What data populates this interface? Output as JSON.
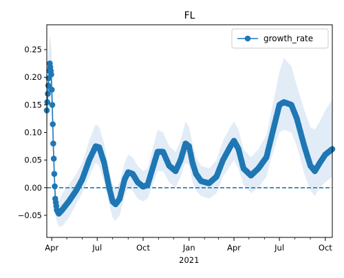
{
  "chart_data": {
    "type": "line",
    "title": "FL",
    "xlabel": "",
    "ylabel": "",
    "x_year_label": "2021",
    "xlim": [
      "2020-03-22",
      "2021-10-15"
    ],
    "ylim": [
      -0.09,
      0.295
    ],
    "yticks": [
      -0.05,
      0.0,
      0.05,
      0.1,
      0.15,
      0.2,
      0.25
    ],
    "ytick_labels": [
      "−0.05",
      "0.00",
      "0.05",
      "0.10",
      "0.15",
      "0.20",
      "0.25"
    ],
    "xticks": [
      {
        "date": "2020-04-01",
        "label": "Apr"
      },
      {
        "date": "2020-07-01",
        "label": "Jul"
      },
      {
        "date": "2020-10-01",
        "label": "Oct"
      },
      {
        "date": "2021-01-01",
        "label": "Jan"
      },
      {
        "date": "2021-04-01",
        "label": "Apr"
      },
      {
        "date": "2021-07-01",
        "label": "Jul"
      },
      {
        "date": "2021-10-01",
        "label": "Oct"
      }
    ],
    "minor_xticks": [
      "2020-05-01",
      "2020-06-01",
      "2020-08-01",
      "2020-09-01",
      "2020-11-01",
      "2020-12-01",
      "2021-02-01",
      "2021-03-01",
      "2021-05-01",
      "2021-06-01",
      "2021-08-01",
      "2021-09-01"
    ],
    "reference_line": {
      "y": 0.0,
      "style": "dashed"
    },
    "legend": {
      "placement": "top-right",
      "entries": [
        "growth_rate"
      ]
    },
    "grid": false,
    "series": [
      {
        "name": "growth_rate",
        "color": "#1f77b4",
        "band_color": "#cfe0f1",
        "points": [
          {
            "x": "2020-03-22",
            "y": 0.14,
            "lo": 0.09,
            "hi": 0.19
          },
          {
            "x": "2020-03-25",
            "y": 0.185,
            "lo": 0.13,
            "hi": 0.245
          },
          {
            "x": "2020-03-28",
            "y": 0.225,
            "lo": 0.165,
            "hi": 0.275
          },
          {
            "x": "2020-03-31",
            "y": 0.205,
            "lo": 0.15,
            "hi": 0.26
          },
          {
            "x": "2020-04-02",
            "y": 0.15,
            "lo": 0.1,
            "hi": 0.2
          },
          {
            "x": "2020-04-04",
            "y": 0.08,
            "lo": 0.04,
            "hi": 0.12
          },
          {
            "x": "2020-04-06",
            "y": 0.025,
            "lo": 0.0,
            "hi": 0.05
          },
          {
            "x": "2020-04-08",
            "y": -0.02,
            "lo": -0.045,
            "hi": 0.01
          },
          {
            "x": "2020-04-11",
            "y": -0.04,
            "lo": -0.06,
            "hi": -0.015
          },
          {
            "x": "2020-04-15",
            "y": -0.047,
            "lo": -0.07,
            "hi": -0.025
          },
          {
            "x": "2020-04-22",
            "y": -0.04,
            "lo": -0.07,
            "hi": -0.01
          },
          {
            "x": "2020-05-05",
            "y": -0.025,
            "lo": -0.055,
            "hi": 0.005
          },
          {
            "x": "2020-05-20",
            "y": -0.005,
            "lo": -0.03,
            "hi": 0.025
          },
          {
            "x": "2020-06-01",
            "y": 0.015,
            "lo": -0.01,
            "hi": 0.045
          },
          {
            "x": "2020-06-15",
            "y": 0.05,
            "lo": 0.02,
            "hi": 0.085
          },
          {
            "x": "2020-06-28",
            "y": 0.075,
            "lo": 0.045,
            "hi": 0.115
          },
          {
            "x": "2020-07-05",
            "y": 0.073,
            "lo": 0.04,
            "hi": 0.11
          },
          {
            "x": "2020-07-15",
            "y": 0.045,
            "lo": 0.01,
            "hi": 0.08
          },
          {
            "x": "2020-07-25",
            "y": 0.0,
            "lo": -0.03,
            "hi": 0.03
          },
          {
            "x": "2020-08-01",
            "y": -0.025,
            "lo": -0.055,
            "hi": 0.005
          },
          {
            "x": "2020-08-07",
            "y": -0.03,
            "lo": -0.06,
            "hi": 0.0
          },
          {
            "x": "2020-08-15",
            "y": -0.02,
            "lo": -0.05,
            "hi": 0.01
          },
          {
            "x": "2020-08-25",
            "y": 0.015,
            "lo": -0.015,
            "hi": 0.045
          },
          {
            "x": "2020-09-01",
            "y": 0.028,
            "lo": 0.0,
            "hi": 0.06
          },
          {
            "x": "2020-09-10",
            "y": 0.025,
            "lo": -0.005,
            "hi": 0.055
          },
          {
            "x": "2020-09-20",
            "y": 0.01,
            "lo": -0.02,
            "hi": 0.04
          },
          {
            "x": "2020-10-01",
            "y": 0.002,
            "lo": -0.025,
            "hi": 0.03
          },
          {
            "x": "2020-10-10",
            "y": 0.005,
            "lo": -0.02,
            "hi": 0.035
          },
          {
            "x": "2020-10-20",
            "y": 0.035,
            "lo": 0.005,
            "hi": 0.07
          },
          {
            "x": "2020-10-30",
            "y": 0.065,
            "lo": 0.03,
            "hi": 0.105
          },
          {
            "x": "2020-11-10",
            "y": 0.065,
            "lo": 0.03,
            "hi": 0.1
          },
          {
            "x": "2020-11-22",
            "y": 0.04,
            "lo": 0.01,
            "hi": 0.075
          },
          {
            "x": "2020-12-05",
            "y": 0.03,
            "lo": 0.0,
            "hi": 0.065
          },
          {
            "x": "2020-12-15",
            "y": 0.05,
            "lo": 0.02,
            "hi": 0.085
          },
          {
            "x": "2020-12-25",
            "y": 0.08,
            "lo": 0.045,
            "hi": 0.12
          },
          {
            "x": "2021-01-01",
            "y": 0.075,
            "lo": 0.04,
            "hi": 0.11
          },
          {
            "x": "2021-01-08",
            "y": 0.045,
            "lo": 0.01,
            "hi": 0.08
          },
          {
            "x": "2021-01-15",
            "y": 0.025,
            "lo": -0.005,
            "hi": 0.055
          },
          {
            "x": "2021-01-25",
            "y": 0.012,
            "lo": -0.015,
            "hi": 0.04
          },
          {
            "x": "2021-02-10",
            "y": 0.008,
            "lo": -0.02,
            "hi": 0.035
          },
          {
            "x": "2021-02-25",
            "y": 0.02,
            "lo": -0.01,
            "hi": 0.05
          },
          {
            "x": "2021-03-10",
            "y": 0.05,
            "lo": 0.02,
            "hi": 0.085
          },
          {
            "x": "2021-03-25",
            "y": 0.075,
            "lo": 0.04,
            "hi": 0.11
          },
          {
            "x": "2021-04-01",
            "y": 0.085,
            "lo": 0.05,
            "hi": 0.12
          },
          {
            "x": "2021-04-10",
            "y": 0.07,
            "lo": 0.035,
            "hi": 0.105
          },
          {
            "x": "2021-04-20",
            "y": 0.035,
            "lo": 0.005,
            "hi": 0.07
          },
          {
            "x": "2021-05-05",
            "y": 0.022,
            "lo": -0.01,
            "hi": 0.055
          },
          {
            "x": "2021-05-20",
            "y": 0.035,
            "lo": 0.0,
            "hi": 0.07
          },
          {
            "x": "2021-06-05",
            "y": 0.055,
            "lo": 0.02,
            "hi": 0.095
          },
          {
            "x": "2021-06-20",
            "y": 0.11,
            "lo": 0.07,
            "hi": 0.16
          },
          {
            "x": "2021-07-01",
            "y": 0.15,
            "lo": 0.1,
            "hi": 0.21
          },
          {
            "x": "2021-07-10",
            "y": 0.155,
            "lo": 0.105,
            "hi": 0.235
          },
          {
            "x": "2021-07-25",
            "y": 0.15,
            "lo": 0.1,
            "hi": 0.22
          },
          {
            "x": "2021-08-05",
            "y": 0.125,
            "lo": 0.075,
            "hi": 0.185
          },
          {
            "x": "2021-08-20",
            "y": 0.075,
            "lo": 0.025,
            "hi": 0.14
          },
          {
            "x": "2021-09-01",
            "y": 0.04,
            "lo": -0.005,
            "hi": 0.11
          },
          {
            "x": "2021-09-10",
            "y": 0.03,
            "lo": -0.015,
            "hi": 0.105
          },
          {
            "x": "2021-09-20",
            "y": 0.045,
            "lo": 0.0,
            "hi": 0.12
          },
          {
            "x": "2021-10-01",
            "y": 0.06,
            "lo": 0.01,
            "hi": 0.14
          },
          {
            "x": "2021-10-15",
            "y": 0.07,
            "lo": 0.02,
            "hi": 0.16
          }
        ]
      }
    ]
  }
}
